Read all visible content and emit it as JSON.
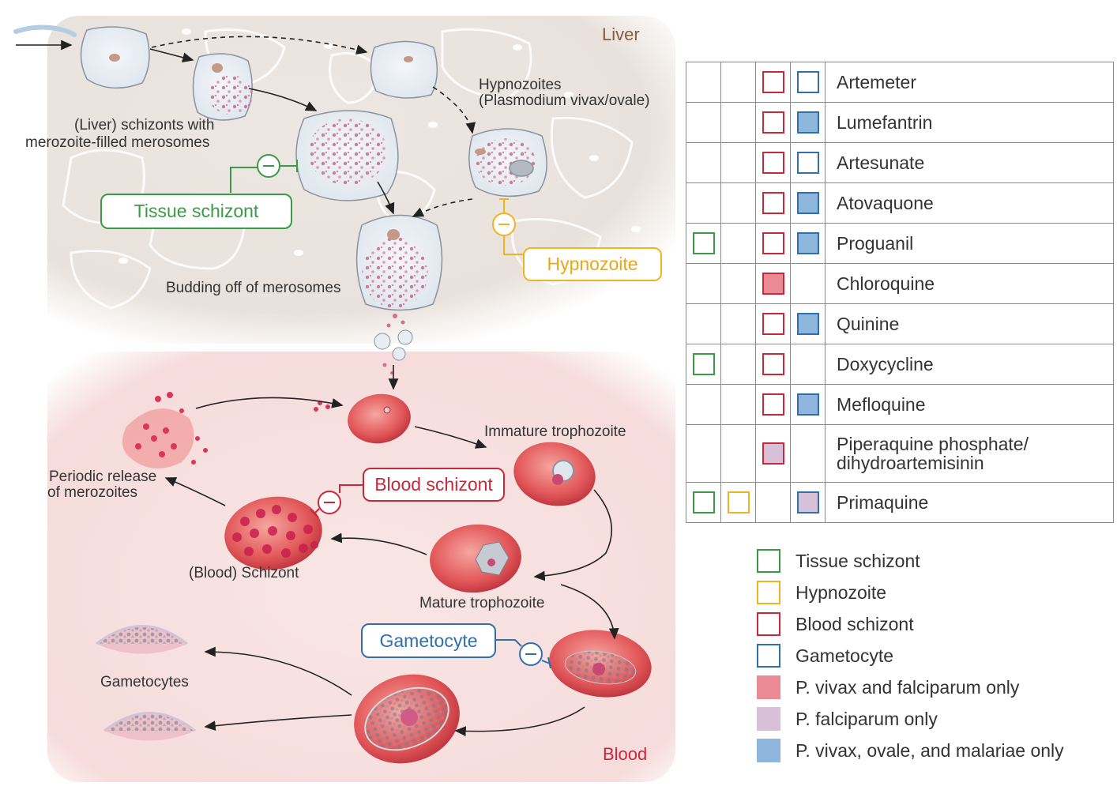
{
  "regions": {
    "liver": "Liver",
    "blood": "Blood"
  },
  "liver_labels": {
    "hypnozoites_line1": "Hypnozoites",
    "hypnozoites_line2": "(Plasmodium vivax/ovale)",
    "schizonts_line1": "(Liver) schizonts with",
    "schizonts_line2": "merozoite-filled merosomes",
    "budding": "Budding off of merosomes"
  },
  "blood_labels": {
    "immature": "Immature trophozoite",
    "periodic_line1": "Periodic release",
    "periodic_line2": "of merozoites",
    "blood_schizont_cell": "(Blood) Schizont",
    "mature": "Mature trophozoite",
    "gametocytes": "Gametocytes"
  },
  "targets": {
    "tissue_schizont": "Tissue schizont",
    "hypnozoite": "Hypnozoite",
    "blood_schizont": "Blood schizont",
    "gametocyte": "Gametocyte"
  },
  "colors": {
    "tissue_schizont": "#3a9a45",
    "hypnozoite": "#f0b323",
    "blood_schizont": "#c8283a",
    "gametocyte": "#2f6fad",
    "vivax_falciparum_fill": "#e98a95",
    "falciparum_fill": "#d7c0d8",
    "vivax_ovale_malariae_fill": "#8fb6dc"
  },
  "drugs": [
    {
      "name": "Artemeter",
      "cells": [
        "",
        "",
        "blood_schizont",
        "gametocyte"
      ]
    },
    {
      "name": "Lumefantrin",
      "cells": [
        "",
        "",
        "blood_schizont",
        "gametocyte_vivax_ovale_malariae"
      ]
    },
    {
      "name": "Artesunate",
      "cells": [
        "",
        "",
        "blood_schizont",
        "gametocyte"
      ]
    },
    {
      "name": "Atovaquone",
      "cells": [
        "",
        "",
        "blood_schizont",
        "gametocyte_vivax_ovale_malariae"
      ]
    },
    {
      "name": "Proguanil",
      "cells": [
        "tissue_schizont",
        "",
        "blood_schizont",
        "gametocyte_vivax_ovale_malariae"
      ]
    },
    {
      "name": "Chloroquine",
      "cells": [
        "",
        "",
        "blood_schizont_vivax_falciparum",
        ""
      ]
    },
    {
      "name": "Quinine",
      "cells": [
        "",
        "",
        "blood_schizont",
        "gametocyte_vivax_ovale_malariae"
      ]
    },
    {
      "name": "Doxycycline",
      "cells": [
        "tissue_schizont",
        "",
        "blood_schizont",
        ""
      ]
    },
    {
      "name": "Mefloquine",
      "cells": [
        "",
        "",
        "blood_schizont",
        "gametocyte_vivax_ovale_malariae"
      ]
    },
    {
      "name_line1": "Piperaquine phosphate/",
      "name_line2": "dihydroartemisinin",
      "cells": [
        "",
        "",
        "blood_schizont_falciparum",
        ""
      ]
    },
    {
      "name": "Primaquine",
      "cells": [
        "tissue_schizont",
        "hypnozoite",
        "",
        "gametocyte_falciparum"
      ]
    }
  ],
  "legend": [
    {
      "label": "Tissue schizont",
      "kind": "tissue_schizont"
    },
    {
      "label": "Hypnozoite",
      "kind": "hypnozoite"
    },
    {
      "label": "Blood schizont",
      "kind": "blood_schizont"
    },
    {
      "label": "Gametocyte",
      "kind": "gametocyte"
    },
    {
      "label": "P. vivax and falciparum only",
      "kind": "fill_vivax_falciparum"
    },
    {
      "label": "P. falciparum only",
      "kind": "fill_falciparum"
    },
    {
      "label": "P. vivax, ovale, and malariae only",
      "kind": "fill_vivax_ovale_malariae"
    }
  ]
}
